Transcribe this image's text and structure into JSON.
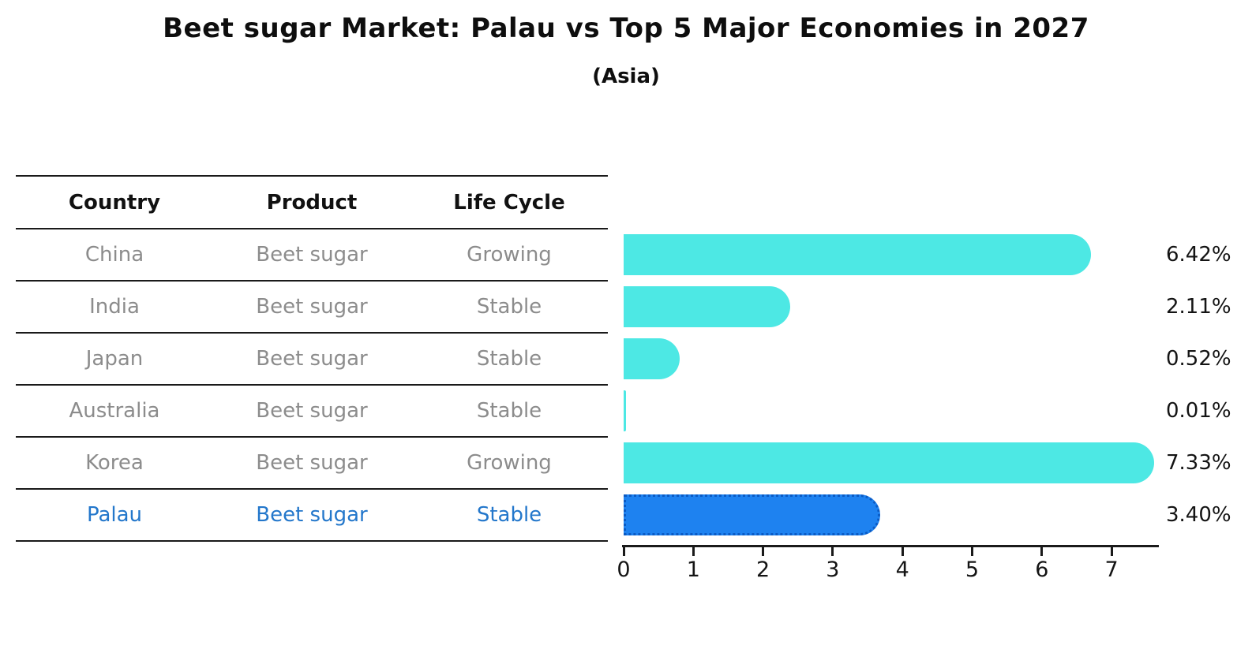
{
  "chart_data": {
    "type": "bar",
    "orientation": "horizontal",
    "title": "Beet sugar Market: Palau vs Top 5 Major Economies in 2027",
    "subtitle": "(Asia)",
    "categories": [
      "China",
      "India",
      "Japan",
      "Australia",
      "Korea",
      "Palau"
    ],
    "values": [
      6.42,
      2.11,
      0.52,
      0.01,
      7.33,
      3.4
    ],
    "value_labels": [
      "6.42%",
      "2.11%",
      "0.52%",
      "0.01%",
      "7.33%",
      "3.40%"
    ],
    "unit": "%",
    "highlight_category": "Palau",
    "highlight_index": 5,
    "x_ticks": [
      "0",
      "1",
      "2",
      "3",
      "4",
      "5",
      "6",
      "7"
    ],
    "xlim": [
      0,
      7.7
    ],
    "grid": false,
    "legend": false
  },
  "table": {
    "headers": [
      "Country",
      "Product",
      "Life Cycle"
    ],
    "rows": [
      {
        "country": "China",
        "product": "Beet sugar",
        "life_cycle": "Growing",
        "highlight": false
      },
      {
        "country": "India",
        "product": "Beet sugar",
        "life_cycle": "Stable",
        "highlight": false
      },
      {
        "country": "Japan",
        "product": "Beet sugar",
        "life_cycle": "Stable",
        "highlight": false
      },
      {
        "country": "Australia",
        "product": "Beet sugar",
        "life_cycle": "Stable",
        "highlight": false
      },
      {
        "country": "Korea",
        "product": "Beet sugar",
        "life_cycle": "Growing",
        "highlight": false
      },
      {
        "country": "Palau",
        "product": "Beet sugar",
        "life_cycle": "Stable",
        "highlight": true
      }
    ]
  },
  "colors": {
    "bar_default": "#4DE8E4",
    "bar_highlight_fill": "#1E82F0",
    "bar_highlight_border": "#0B5BC4",
    "highlight_text": "#2377CB",
    "table_text": "#8C8C8C",
    "heading_text": "#111111",
    "axis": "#1A1A1A"
  }
}
